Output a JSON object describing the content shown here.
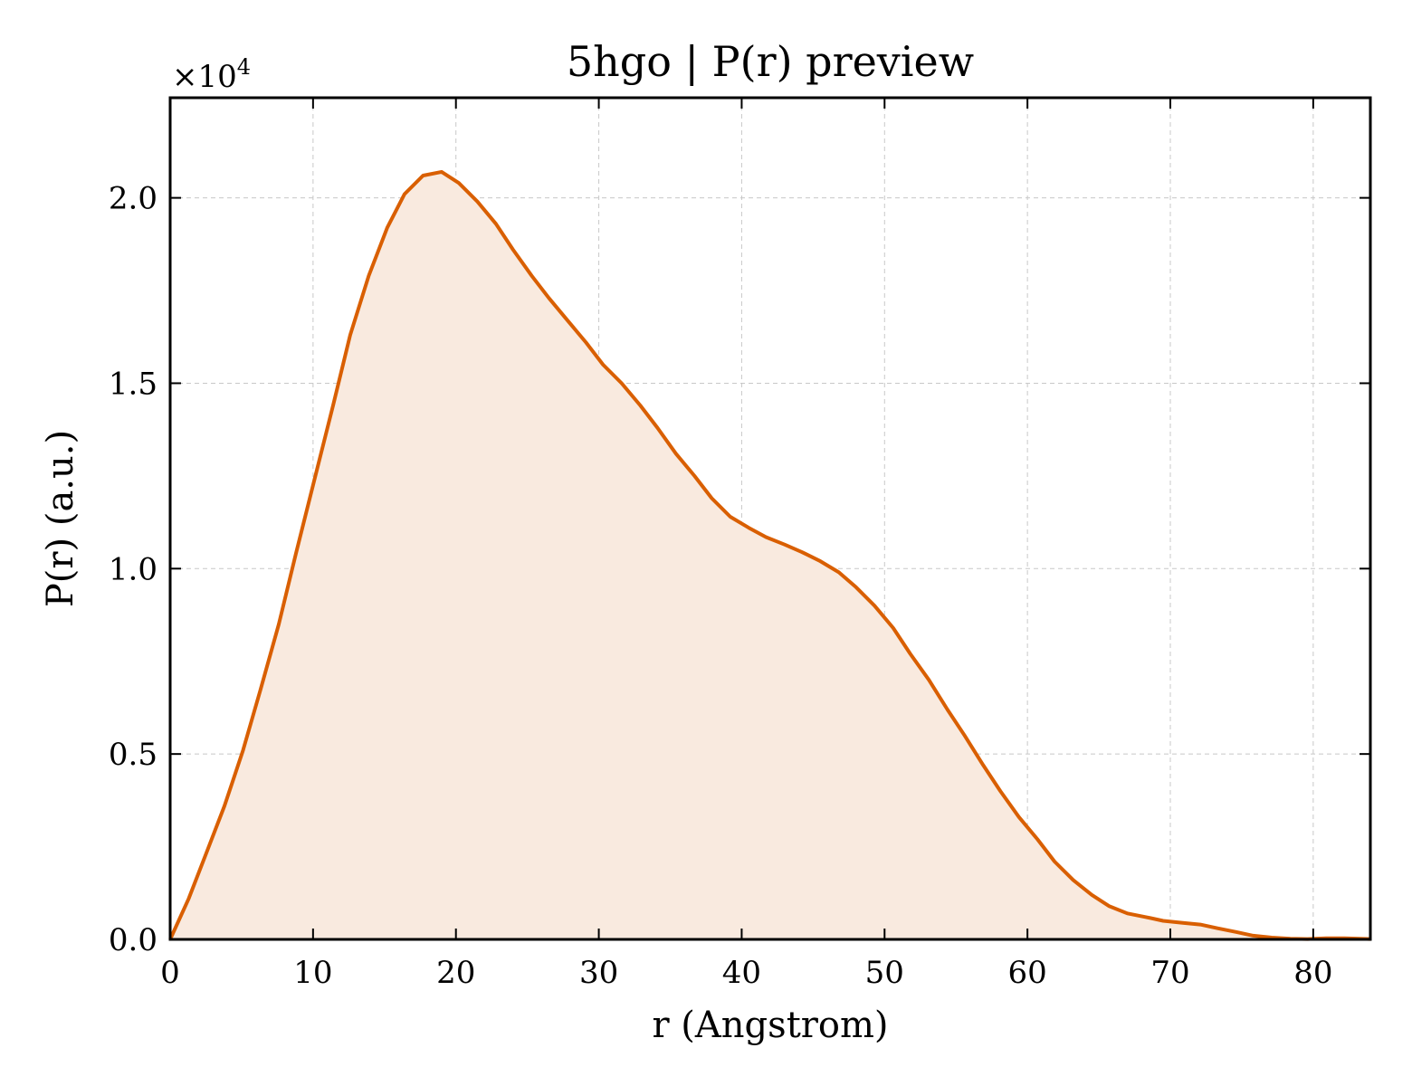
{
  "chart_data": {
    "type": "area",
    "title": "5hgo | P(r) preview",
    "xlabel": "r (Angstrom)",
    "ylabel": "P(r) (a.u.)",
    "y_offset_label": {
      "base": "×10",
      "exponent": "4"
    },
    "xlim": [
      0,
      84
    ],
    "ylim": [
      0,
      2.27
    ],
    "xticks": [
      0,
      10,
      20,
      30,
      40,
      50,
      60,
      70,
      80
    ],
    "xtick_labels": [
      "0",
      "10",
      "20",
      "30",
      "40",
      "50",
      "60",
      "70",
      "80"
    ],
    "yticks": [
      0,
      0.5,
      1.0,
      1.5,
      2.0
    ],
    "ytick_labels": [
      "0.0",
      "0.5",
      "1.0",
      "1.5",
      "2.0"
    ],
    "grid": true,
    "line_color": "#d95f02",
    "fill_color": "#f9eadf",
    "series": [
      {
        "x": [
          0,
          1.3,
          2.5,
          3.8,
          5.1,
          6.3,
          7.6,
          8.8,
          10.1,
          11.4,
          12.6,
          13.9,
          15.2,
          16.4,
          17.7,
          19.0,
          20.2,
          21.5,
          22.8,
          24.0,
          25.3,
          26.5,
          27.8,
          29.1,
          30.3,
          31.6,
          32.9,
          34.1,
          35.4,
          36.7,
          37.9,
          39.2,
          40.5,
          41.7,
          43.0,
          44.2,
          45.5,
          46.8,
          48.0,
          49.3,
          50.6,
          51.8,
          53.1,
          54.4,
          55.6,
          56.9,
          58.1,
          59.4,
          60.7,
          61.9,
          63.2,
          64.5,
          65.7,
          67.0,
          68.3,
          69.5,
          70.8,
          72.1,
          73.3,
          74.6,
          75.8,
          77.1,
          78.4,
          79.6,
          80.9,
          82.2,
          84.0
        ],
        "y": [
          0,
          0.11,
          0.23,
          0.36,
          0.51,
          0.67,
          0.85,
          1.04,
          1.24,
          1.44,
          1.63,
          1.79,
          1.92,
          2.01,
          2.06,
          2.07,
          2.04,
          1.99,
          1.93,
          1.86,
          1.79,
          1.73,
          1.67,
          1.61,
          1.55,
          1.5,
          1.44,
          1.38,
          1.31,
          1.25,
          1.19,
          1.14,
          1.11,
          1.085,
          1.065,
          1.045,
          1.02,
          0.99,
          0.95,
          0.9,
          0.84,
          0.77,
          0.7,
          0.62,
          0.55,
          0.47,
          0.4,
          0.33,
          0.27,
          0.21,
          0.16,
          0.12,
          0.09,
          0.07,
          0.06,
          0.05,
          0.045,
          0.04,
          0.03,
          0.02,
          0.01,
          0.005,
          0.002,
          0.001,
          0.003,
          0.003,
          0.001
        ]
      }
    ]
  }
}
